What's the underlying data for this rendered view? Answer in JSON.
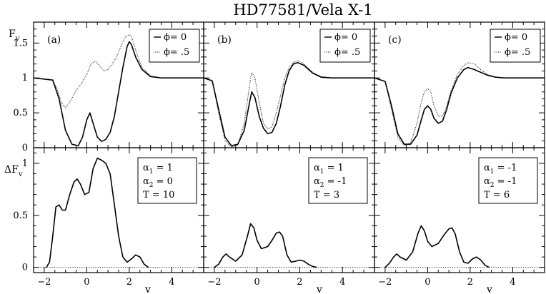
{
  "figure": {
    "title": "HD77581/Vela X-1",
    "top_ylabel": "F",
    "top_ylabel_sub": "v",
    "bottom_ylabel": "ΔF",
    "bottom_ylabel_sub": "v",
    "xlabel": "v"
  },
  "chart_data": [
    {
      "type": "line",
      "panel": "top-left",
      "tag": "(a)",
      "xlim": [
        -2.5,
        5.5
      ],
      "ylim": [
        0,
        1.8
      ],
      "xticks": [
        "-2",
        "0",
        "2",
        "4"
      ],
      "yticks": [
        "0",
        "0.5",
        "1",
        "1.5"
      ],
      "legend": {
        "placement": "top-right",
        "entries": [
          "ϕ= 0",
          "ϕ= .5"
        ]
      },
      "series": [
        {
          "name": "ϕ= 0",
          "style": "solid",
          "x": [
            -2.5,
            -1.6,
            -1.3,
            -1.0,
            -0.7,
            -0.4,
            -0.2,
            0.0,
            0.15,
            0.3,
            0.5,
            0.7,
            0.9,
            1.1,
            1.3,
            1.5,
            1.7,
            1.9,
            2.0,
            2.1,
            2.3,
            2.6,
            3.0,
            3.5,
            5.5
          ],
          "y": [
            1.0,
            0.97,
            0.7,
            0.25,
            0.05,
            0.03,
            0.15,
            0.4,
            0.5,
            0.35,
            0.15,
            0.09,
            0.12,
            0.22,
            0.45,
            0.8,
            1.15,
            1.45,
            1.52,
            1.48,
            1.3,
            1.12,
            1.02,
            1.0,
            1.0
          ]
        },
        {
          "name": "ϕ= .5",
          "style": "dotted",
          "x": [
            -2.5,
            -1.6,
            -1.4,
            -1.2,
            -1.0,
            -0.8,
            -0.5,
            -0.2,
            0.0,
            0.2,
            0.4,
            0.6,
            0.8,
            1.0,
            1.2,
            1.4,
            1.6,
            1.8,
            2.0,
            2.1,
            2.3,
            2.6,
            3.0,
            3.5,
            5.5
          ],
          "y": [
            1.0,
            0.97,
            0.85,
            0.65,
            0.57,
            0.65,
            0.82,
            0.94,
            1.05,
            1.2,
            1.24,
            1.18,
            1.1,
            1.12,
            1.2,
            1.3,
            1.45,
            1.58,
            1.62,
            1.6,
            1.4,
            1.15,
            1.03,
            1.0,
            1.0
          ]
        }
      ]
    },
    {
      "type": "line",
      "panel": "top-middle",
      "tag": "(b)",
      "xlim": [
        -2.5,
        5.5
      ],
      "ylim": [
        0,
        1.8
      ],
      "xticks": [
        "-2",
        "0",
        "2",
        "4"
      ],
      "yticks": [],
      "legend": {
        "placement": "top-right",
        "entries": [
          "ϕ= 0",
          "ϕ= .5"
        ]
      },
      "series": [
        {
          "name": "ϕ= 0",
          "style": "solid",
          "x": [
            -2.5,
            -2.1,
            -1.8,
            -1.5,
            -1.2,
            -0.9,
            -0.6,
            -0.35,
            -0.25,
            -0.1,
            0.1,
            0.3,
            0.5,
            0.7,
            0.9,
            1.1,
            1.3,
            1.5,
            1.7,
            1.9,
            2.2,
            2.6,
            3.0,
            3.5,
            5.5
          ],
          "y": [
            1.0,
            0.96,
            0.55,
            0.15,
            0.03,
            0.05,
            0.25,
            0.65,
            0.8,
            0.72,
            0.45,
            0.28,
            0.2,
            0.22,
            0.35,
            0.6,
            0.9,
            1.1,
            1.2,
            1.22,
            1.18,
            1.07,
            1.01,
            1.0,
            1.0
          ]
        },
        {
          "name": "ϕ= .5",
          "style": "dotted",
          "x": [
            -2.5,
            -2.1,
            -1.8,
            -1.5,
            -1.2,
            -0.9,
            -0.6,
            -0.35,
            -0.25,
            -0.1,
            0.1,
            0.3,
            0.5,
            0.7,
            0.9,
            1.1,
            1.3,
            1.5,
            1.7,
            1.9,
            2.2,
            2.6,
            3.0,
            3.5,
            5.5
          ],
          "y": [
            1.0,
            0.96,
            0.5,
            0.1,
            0.01,
            0.04,
            0.35,
            0.9,
            1.08,
            1.0,
            0.65,
            0.35,
            0.27,
            0.3,
            0.5,
            0.75,
            1.0,
            1.15,
            1.22,
            1.25,
            1.2,
            1.08,
            1.02,
            1.0,
            1.0
          ]
        }
      ]
    },
    {
      "type": "line",
      "panel": "top-right",
      "tag": "(c)",
      "xlim": [
        -2.5,
        5.5
      ],
      "ylim": [
        0,
        1.8
      ],
      "xticks": [
        "-2",
        "0",
        "2",
        "4"
      ],
      "yticks": [],
      "legend": {
        "placement": "top-right",
        "entries": [
          "ϕ= 0",
          "ϕ= .5"
        ]
      },
      "series": [
        {
          "name": "ϕ= 0",
          "style": "solid",
          "x": [
            -2.5,
            -2.0,
            -1.7,
            -1.4,
            -1.1,
            -0.8,
            -0.5,
            -0.3,
            -0.15,
            0.0,
            0.15,
            0.3,
            0.5,
            0.7,
            0.9,
            1.1,
            1.4,
            1.7,
            1.9,
            2.2,
            2.5,
            2.8,
            3.2,
            3.6,
            5.5
          ],
          "y": [
            1.0,
            0.95,
            0.6,
            0.2,
            0.05,
            0.05,
            0.18,
            0.4,
            0.55,
            0.6,
            0.55,
            0.42,
            0.35,
            0.38,
            0.55,
            0.78,
            1.0,
            1.12,
            1.15,
            1.12,
            1.08,
            1.04,
            1.01,
            1.0,
            1.0
          ]
        },
        {
          "name": "ϕ= .5",
          "style": "dotted",
          "x": [
            -2.5,
            -2.0,
            -1.7,
            -1.4,
            -1.1,
            -0.8,
            -0.5,
            -0.3,
            -0.15,
            0.0,
            0.15,
            0.3,
            0.5,
            0.7,
            0.9,
            1.1,
            1.4,
            1.7,
            1.9,
            2.2,
            2.5,
            2.8,
            3.2,
            3.6,
            5.5
          ],
          "y": [
            1.0,
            0.95,
            0.55,
            0.15,
            0.03,
            0.07,
            0.35,
            0.65,
            0.8,
            0.85,
            0.8,
            0.6,
            0.45,
            0.45,
            0.6,
            0.82,
            1.05,
            1.18,
            1.22,
            1.2,
            1.12,
            1.05,
            1.01,
            1.0,
            1.0
          ]
        }
      ]
    },
    {
      "type": "line",
      "panel": "bottom-left",
      "xlim": [
        -2.5,
        5.5
      ],
      "ylim": [
        -0.05,
        1.15
      ],
      "xticks": [
        "-2",
        "0",
        "2",
        "4"
      ],
      "yticks": [
        "0",
        "0.5",
        "1"
      ],
      "params": [
        "α1 = 1",
        "α2 = 0",
        "T = 10"
      ],
      "params_display": [
        {
          "sym": "α",
          "sub": "1",
          "val": " = 1"
        },
        {
          "sym": "α",
          "sub": "2",
          "val": " = 0"
        },
        {
          "sym": "T",
          "sub": "",
          "val": " = 10"
        }
      ],
      "baseline": 0,
      "series": [
        {
          "name": "",
          "style": "solid",
          "x": [
            -1.9,
            -1.75,
            -1.6,
            -1.45,
            -1.3,
            -1.15,
            -1.0,
            -0.8,
            -0.6,
            -0.45,
            -0.3,
            -0.1,
            0.1,
            0.3,
            0.5,
            0.7,
            0.9,
            1.1,
            1.3,
            1.5,
            1.7,
            1.9,
            2.1,
            2.3,
            2.5,
            2.7,
            2.9
          ],
          "y": [
            0.0,
            0.05,
            0.3,
            0.58,
            0.6,
            0.55,
            0.55,
            0.7,
            0.82,
            0.85,
            0.8,
            0.7,
            0.72,
            0.95,
            1.05,
            1.03,
            1.0,
            0.9,
            0.6,
            0.3,
            0.1,
            0.05,
            0.08,
            0.12,
            0.1,
            0.03,
            0.0
          ]
        }
      ]
    },
    {
      "type": "line",
      "panel": "bottom-middle",
      "xlim": [
        -2.5,
        5.5
      ],
      "ylim": [
        -0.05,
        1.15
      ],
      "xticks": [
        "-2",
        "0",
        "2",
        "4"
      ],
      "yticks": [],
      "params": [
        "α1 = 1",
        "α2 = -1",
        "T = 3"
      ],
      "params_display": [
        {
          "sym": "α",
          "sub": "1",
          "val": " = 1"
        },
        {
          "sym": "α",
          "sub": "2",
          "val": " = -1"
        },
        {
          "sym": "T",
          "sub": "",
          "val": " = 3"
        }
      ],
      "baseline": 0,
      "series": [
        {
          "name": "",
          "style": "solid",
          "x": [
            -2.0,
            -1.8,
            -1.6,
            -1.45,
            -1.3,
            -1.0,
            -0.7,
            -0.45,
            -0.3,
            -0.15,
            0.0,
            0.2,
            0.5,
            0.7,
            0.9,
            1.05,
            1.2,
            1.4,
            1.6,
            1.8,
            2.0,
            2.2,
            2.4,
            2.6,
            2.8
          ],
          "y": [
            0.0,
            0.03,
            0.1,
            0.13,
            0.1,
            0.06,
            0.12,
            0.3,
            0.42,
            0.38,
            0.26,
            0.18,
            0.2,
            0.26,
            0.33,
            0.34,
            0.3,
            0.12,
            0.05,
            0.06,
            0.07,
            0.06,
            0.03,
            0.01,
            0.0
          ]
        }
      ]
    },
    {
      "type": "line",
      "panel": "bottom-right",
      "xlim": [
        -2.5,
        5.5
      ],
      "ylim": [
        -0.05,
        1.15
      ],
      "xticks": [
        "-2",
        "0",
        "2",
        "4"
      ],
      "yticks": [],
      "params": [
        "α1 = -1",
        "α2 = -1",
        "T = 6"
      ],
      "params_display": [
        {
          "sym": "α",
          "sub": "1",
          "val": " = -1"
        },
        {
          "sym": "α",
          "sub": "2",
          "val": " = -1"
        },
        {
          "sym": "T",
          "sub": "",
          "val": " = 6"
        }
      ],
      "baseline": 0,
      "series": [
        {
          "name": "",
          "style": "solid",
          "x": [
            -2.0,
            -1.8,
            -1.6,
            -1.45,
            -1.3,
            -1.0,
            -0.7,
            -0.45,
            -0.3,
            -0.15,
            0.0,
            0.2,
            0.5,
            0.8,
            1.0,
            1.15,
            1.3,
            1.5,
            1.7,
            1.9,
            2.1,
            2.3,
            2.5,
            2.7,
            2.9
          ],
          "y": [
            0.0,
            0.04,
            0.1,
            0.13,
            0.1,
            0.07,
            0.15,
            0.33,
            0.4,
            0.35,
            0.25,
            0.2,
            0.23,
            0.32,
            0.37,
            0.38,
            0.32,
            0.15,
            0.05,
            0.04,
            0.08,
            0.1,
            0.07,
            0.02,
            0.0
          ]
        }
      ]
    }
  ]
}
